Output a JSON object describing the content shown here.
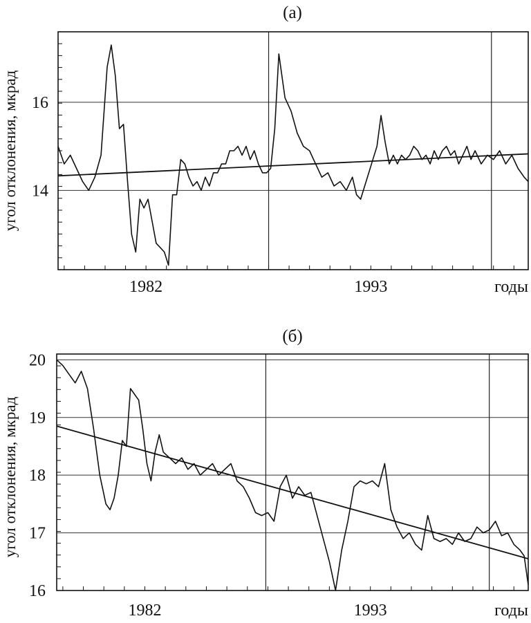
{
  "chart_data": [
    {
      "type": "line",
      "title": "(а)",
      "ylabel": "угол отклонения, мкрад",
      "x_unit_label": "годы",
      "x_tick_labels": [
        "1982",
        "1993"
      ],
      "x_ticks": [
        1982,
        1993
      ],
      "y_ticks": [
        14,
        16
      ],
      "y_tick_labels": [
        "14",
        "16"
      ],
      "xlim": [
        1977.7,
        2000.7
      ],
      "ylim": [
        12.2,
        17.6
      ],
      "grid": true,
      "vgrid_x": [
        1988.0,
        1998.9
      ],
      "hgrid_y": [
        14,
        16
      ],
      "series": [
        {
          "x": [
            1977.7,
            1978.0,
            1978.3,
            1978.6,
            1978.9,
            1979.2,
            1979.5,
            1979.8,
            1980.1,
            1980.3,
            1980.5,
            1980.7,
            1980.9,
            1981.1,
            1981.3,
            1981.5,
            1981.7,
            1981.9,
            1982.1,
            1982.3,
            1982.5,
            1982.7,
            1982.9,
            1983.1,
            1983.3,
            1983.5,
            1983.7,
            1983.9,
            1984.1,
            1984.3,
            1984.5,
            1984.7,
            1984.9,
            1985.1,
            1985.3,
            1985.5,
            1985.7,
            1985.9,
            1986.1,
            1986.3,
            1986.5,
            1986.7,
            1986.9,
            1987.1,
            1987.3,
            1987.5,
            1987.7,
            1987.9,
            1988.1,
            1988.3,
            1988.5,
            1988.8,
            1989.1,
            1989.4,
            1989.7,
            1990.0,
            1990.3,
            1990.6,
            1990.9,
            1991.2,
            1991.5,
            1991.8,
            1992.1,
            1992.3,
            1992.5,
            1992.7,
            1992.9,
            1993.1,
            1993.3,
            1993.5,
            1993.7,
            1993.9,
            1994.1,
            1994.3,
            1994.5,
            1994.7,
            1994.9,
            1995.1,
            1995.3,
            1995.5,
            1995.7,
            1995.9,
            1996.1,
            1996.3,
            1996.5,
            1996.7,
            1996.9,
            1997.1,
            1997.3,
            1997.5,
            1997.7,
            1997.9,
            1998.1,
            1998.4,
            1998.7,
            1999.0,
            1999.3,
            1999.6,
            1999.9,
            2000.2,
            2000.5,
            2000.7
          ],
          "y": [
            15.0,
            14.6,
            14.8,
            14.5,
            14.2,
            14.0,
            14.3,
            14.8,
            16.8,
            17.3,
            16.6,
            15.4,
            15.5,
            14.2,
            13.0,
            12.6,
            13.8,
            13.6,
            13.8,
            13.3,
            12.8,
            12.7,
            12.6,
            12.3,
            13.9,
            13.9,
            14.7,
            14.6,
            14.3,
            14.1,
            14.2,
            14.0,
            14.3,
            14.1,
            14.4,
            14.4,
            14.6,
            14.6,
            14.9,
            14.9,
            15.0,
            14.8,
            15.0,
            14.7,
            14.9,
            14.6,
            14.4,
            14.4,
            14.5,
            15.4,
            17.1,
            16.1,
            15.8,
            15.3,
            15.0,
            14.9,
            14.6,
            14.3,
            14.4,
            14.1,
            14.2,
            14.0,
            14.3,
            13.9,
            13.8,
            14.1,
            14.4,
            14.7,
            15.0,
            15.7,
            15.1,
            14.6,
            14.8,
            14.6,
            14.8,
            14.7,
            14.8,
            15.0,
            14.9,
            14.7,
            14.8,
            14.6,
            14.9,
            14.7,
            14.9,
            15.0,
            14.8,
            14.9,
            14.6,
            14.8,
            15.0,
            14.7,
            14.9,
            14.6,
            14.8,
            14.7,
            14.9,
            14.6,
            14.8,
            14.5,
            14.3,
            14.2
          ]
        }
      ],
      "trend": {
        "x": [
          1977.7,
          2000.7
        ],
        "y": [
          14.33,
          14.83
        ]
      }
    },
    {
      "type": "line",
      "title": "(б)",
      "ylabel": "угол отклонения, мкрад",
      "x_unit_label": "годы",
      "x_tick_labels": [
        "1982",
        "1993"
      ],
      "x_ticks": [
        1982,
        1993
      ],
      "y_ticks": [
        16,
        17,
        18,
        19,
        20
      ],
      "y_tick_labels": [
        "16",
        "17",
        "18",
        "19",
        "20"
      ],
      "xlim": [
        1977.7,
        2000.7
      ],
      "ylim": [
        16.0,
        20.1
      ],
      "grid": true,
      "vgrid_x": [
        1987.9,
        1998.8
      ],
      "hgrid_y": [
        17,
        18,
        19,
        20
      ],
      "series": [
        {
          "x": [
            1977.7,
            1978.0,
            1978.3,
            1978.6,
            1978.9,
            1979.2,
            1979.5,
            1979.8,
            1980.1,
            1980.3,
            1980.5,
            1980.7,
            1980.9,
            1981.1,
            1981.3,
            1981.5,
            1981.7,
            1981.9,
            1982.1,
            1982.3,
            1982.5,
            1982.7,
            1982.9,
            1983.2,
            1983.5,
            1983.8,
            1984.1,
            1984.4,
            1984.7,
            1985.0,
            1985.3,
            1985.6,
            1985.9,
            1986.2,
            1986.5,
            1986.8,
            1987.1,
            1987.4,
            1987.7,
            1988.0,
            1988.3,
            1988.6,
            1988.9,
            1989.2,
            1989.5,
            1989.8,
            1990.1,
            1990.4,
            1990.7,
            1991.0,
            1991.3,
            1991.6,
            1991.9,
            1992.2,
            1992.5,
            1992.8,
            1993.1,
            1993.4,
            1993.7,
            1994.0,
            1994.3,
            1994.6,
            1994.9,
            1995.2,
            1995.5,
            1995.8,
            1996.1,
            1996.4,
            1996.7,
            1997.0,
            1997.3,
            1997.6,
            1997.9,
            1998.2,
            1998.5,
            1998.8,
            1999.1,
            1999.4,
            1999.7,
            2000.0,
            2000.3,
            2000.5,
            2000.7
          ],
          "y": [
            20.0,
            19.9,
            19.75,
            19.6,
            19.8,
            19.5,
            18.8,
            18.0,
            17.5,
            17.4,
            17.6,
            18.0,
            18.6,
            18.5,
            19.5,
            19.4,
            19.3,
            18.8,
            18.2,
            17.9,
            18.4,
            18.7,
            18.4,
            18.3,
            18.2,
            18.3,
            18.1,
            18.2,
            18.0,
            18.1,
            18.2,
            18.0,
            18.1,
            18.2,
            17.9,
            17.8,
            17.6,
            17.35,
            17.3,
            17.35,
            17.2,
            17.8,
            18.0,
            17.6,
            17.8,
            17.65,
            17.7,
            17.3,
            16.9,
            16.5,
            16.0,
            16.7,
            17.2,
            17.8,
            17.9,
            17.85,
            17.9,
            17.8,
            18.2,
            17.4,
            17.1,
            16.9,
            17.0,
            16.8,
            16.7,
            17.3,
            16.9,
            16.85,
            16.9,
            16.8,
            17.0,
            16.85,
            16.9,
            17.1,
            17.0,
            17.05,
            17.2,
            16.95,
            17.0,
            16.8,
            16.7,
            16.6,
            16.1
          ],
          "notes_hidden": false
        }
      ],
      "trend": {
        "x": [
          1977.7,
          2000.7
        ],
        "y": [
          18.85,
          16.55
        ]
      }
    }
  ]
}
